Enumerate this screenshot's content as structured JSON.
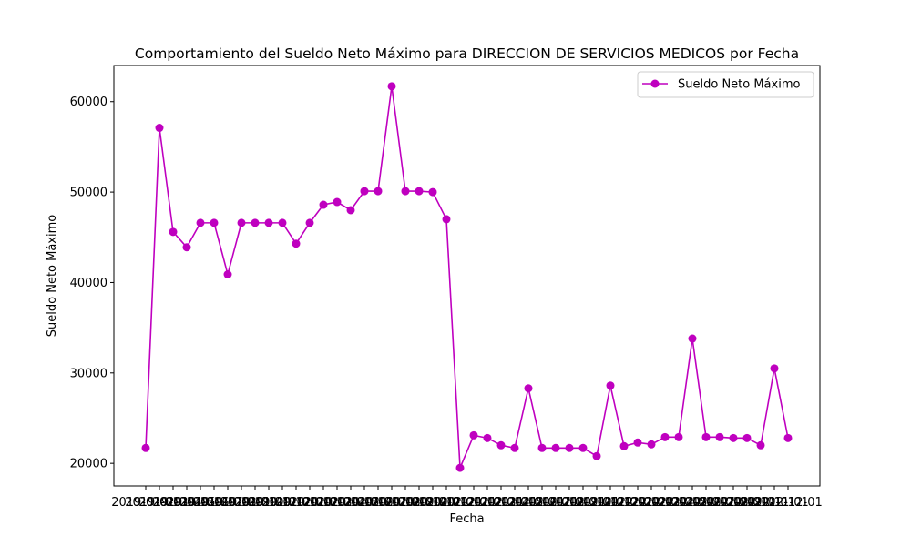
{
  "chart_data": {
    "type": "line",
    "title": "Comportamiento del Sueldo Neto Máximo para DIRECCION DE SERVICIOS MEDICOS por Fecha",
    "xlabel": "Fecha",
    "ylabel": "Sueldo Neto Máximo",
    "ylim": [
      17500,
      64000
    ],
    "yticks": [
      20000,
      30000,
      40000,
      50000,
      60000
    ],
    "grid": false,
    "legend_position": "top-right",
    "series": [
      {
        "name": "Sueldo Neto Máximo",
        "color": "#bf00bf",
        "marker": "circle",
        "values": [
          21700,
          57100,
          45600,
          43900,
          46600,
          46600,
          40900,
          46600,
          46600,
          46600,
          46600,
          44300,
          46600,
          48600,
          48900,
          48000,
          50100,
          50100,
          61700,
          50100,
          50100,
          50000,
          47000,
          19500,
          23100,
          22800,
          22000,
          21700,
          28300,
          21700,
          21700,
          21700,
          21700,
          20800,
          28600,
          21900,
          22300,
          22100,
          22900,
          22900,
          33800,
          22900,
          22900,
          22800,
          22800,
          22000,
          30500,
          22800
        ]
      }
    ],
    "x_tick_labels": [
      "2019-01-01",
      "2019-02-01",
      "2019-03-01",
      "2019-04-01",
      "2019-05-01",
      "2019-06-01",
      "2019-07-01",
      "2019-08-01",
      "2019-09-01",
      "2019-10-01",
      "2019-11-01",
      "2019-12-01",
      "2020-01-01",
      "2020-02-01",
      "2020-03-01",
      "2020-04-01",
      "2020-05-01",
      "2020-06-01",
      "2020-07-01",
      "2020-08-01",
      "2020-09-01",
      "2020-10-01",
      "2020-11-01",
      "2020-12-01",
      "2021-01-01",
      "2021-02-01",
      "2021-03-01",
      "2021-04-01",
      "2021-05-01",
      "2021-06-01",
      "2021-07-01",
      "2021-08-01",
      "2021-09-01",
      "2021-10-01",
      "2021-11-01",
      "2021-12-01",
      "2022-01-01",
      "2022-02-01",
      "2022-03-01",
      "2022-04-01",
      "2022-05-01",
      "2022-06-01",
      "2022-07-01",
      "2022-08-01",
      "2022-09-01",
      "2022-10-01",
      "2022-11-01",
      "2022-12-01"
    ]
  }
}
